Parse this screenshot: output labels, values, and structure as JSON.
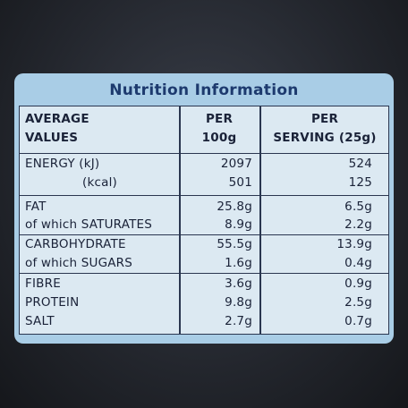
{
  "panel": {
    "title": "Nutrition Information",
    "header": [
      [
        "AVERAGE",
        "VALUES"
      ],
      [
        "PER",
        "100g"
      ],
      [
        "PER",
        "SERVING (25g)"
      ]
    ],
    "rows": [
      [
        "ENERGY (kJ)",
        "2097",
        "524"
      ],
      [
        "(kcal)",
        "501",
        "125"
      ],
      [
        "FAT",
        "25.8g",
        "6.5g"
      ],
      [
        "of which SATURATES",
        "8.9g",
        "2.2g"
      ],
      [
        "CARBOHYDRATE",
        "55.5g",
        "13.9g"
      ],
      [
        "of which SUGARS",
        "1.6g",
        "0.4g"
      ],
      [
        "FIBRE",
        "3.6g",
        "0.9g"
      ],
      [
        "PROTEIN",
        "9.8g",
        "2.5g"
      ],
      [
        "SALT",
        "2.7g",
        "0.7g"
      ]
    ]
  }
}
